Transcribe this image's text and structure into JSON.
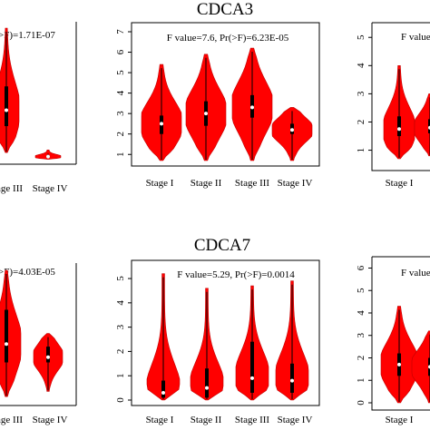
{
  "colors": {
    "violin": "#ff0000",
    "box": "#000000",
    "median": "#ffffff"
  },
  "chart_data": [
    {
      "type": "violin",
      "title": "",
      "annotation": ">F)=1.71E-07",
      "categories": [
        "tage III",
        "Stage IV"
      ],
      "yticks": [],
      "ylim": [
        0,
        5
      ],
      "series": [
        {
          "values": [
            {
              "min": 0.3,
              "q1": 1.3,
              "median": 1.9,
              "q3": 2.8,
              "max": 5.0
            },
            {
              "min": 0.05,
              "q1": 0.1,
              "median": 0.15,
              "q3": 0.2,
              "max": 0.4
            }
          ]
        }
      ]
    },
    {
      "type": "violin",
      "title": "CDCA3",
      "annotation": "F value=7.6, Pr(>F)=6.23E-05",
      "categories": [
        "Stage I",
        "Stage II",
        "Stage III",
        "Stage IV"
      ],
      "yticks": [
        "1",
        "2",
        "3",
        "4",
        "5",
        "6",
        "7"
      ],
      "ylim": [
        0.7,
        7
      ],
      "series": [
        {
          "values": [
            {
              "min": 0.7,
              "q1": 2.0,
              "median": 2.5,
              "q3": 2.9,
              "max": 5.4
            },
            {
              "min": 0.7,
              "q1": 2.4,
              "median": 3.0,
              "q3": 3.6,
              "max": 5.9
            },
            {
              "min": 0.7,
              "q1": 2.8,
              "median": 3.3,
              "q3": 3.9,
              "max": 6.2
            },
            {
              "min": 0.7,
              "q1": 2.0,
              "median": 2.2,
              "q3": 2.5,
              "max": 3.3
            }
          ]
        }
      ]
    },
    {
      "type": "violin",
      "title": "",
      "annotation": "F value",
      "categories": [
        "Stage I",
        ""
      ],
      "yticks": [
        "1",
        "2",
        "3",
        "4",
        "5"
      ],
      "ylim": [
        0.6,
        5.2
      ],
      "series": [
        {
          "values": [
            {
              "min": 0.7,
              "q1": 1.5,
              "median": 1.75,
              "q3": 2.2,
              "max": 4.0
            },
            {
              "min": 0.8,
              "q1": 1.6,
              "median": 1.8,
              "q3": 2.1,
              "max": 3.0
            }
          ]
        }
      ]
    },
    {
      "type": "violin",
      "title": "",
      "annotation": ">F)=4.03E-05",
      "categories": [
        "tage III",
        "Stage IV"
      ],
      "yticks": [],
      "ylim": [
        0,
        5
      ],
      "series": [
        {
          "values": [
            {
              "min": 0.2,
              "q1": 1.5,
              "median": 2.2,
              "q3": 3.5,
              "max": 5.0
            },
            {
              "min": 0.4,
              "q1": 1.5,
              "median": 1.7,
              "q3": 2.1,
              "max": 2.6
            }
          ]
        }
      ]
    },
    {
      "type": "violin",
      "title": "CDCA7",
      "annotation": "F value=5.29, Pr(>F)=0.0014",
      "categories": [
        "Stage I",
        "Stage II",
        "Stage III",
        "Stage IV"
      ],
      "yticks": [
        "0",
        "1",
        "2",
        "3",
        "4",
        "5"
      ],
      "ylim": [
        0,
        5.3
      ],
      "series": [
        {
          "values": [
            {
              "min": 0,
              "q1": 0.1,
              "median": 0.3,
              "q3": 0.8,
              "max": 5.2
            },
            {
              "min": 0,
              "q1": 0.1,
              "median": 0.5,
              "q3": 1.3,
              "max": 4.6
            },
            {
              "min": 0,
              "q1": 0.3,
              "median": 0.9,
              "q3": 2.4,
              "max": 4.7
            },
            {
              "min": 0,
              "q1": 0.3,
              "median": 0.8,
              "q3": 1.5,
              "max": 4.9
            }
          ]
        }
      ]
    },
    {
      "type": "violin",
      "title": "",
      "annotation": "F value",
      "categories": [
        "Stage I",
        ""
      ],
      "yticks": [
        "0",
        "1",
        "2",
        "3",
        "4",
        "5",
        "6"
      ],
      "ylim": [
        0,
        6.1
      ],
      "series": [
        {
          "values": [
            {
              "min": 0,
              "q1": 1.2,
              "median": 1.7,
              "q3": 2.2,
              "max": 4.3
            },
            {
              "min": 0,
              "q1": 1.2,
              "median": 1.6,
              "q3": 2.0,
              "max": 3.2
            }
          ]
        }
      ]
    }
  ]
}
